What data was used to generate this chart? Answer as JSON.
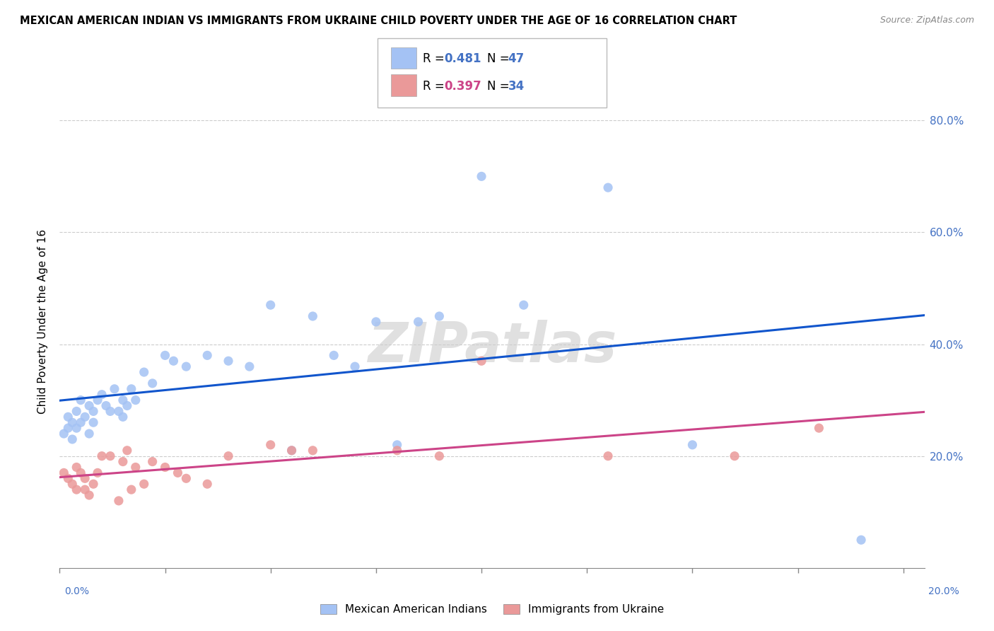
{
  "title": "MEXICAN AMERICAN INDIAN VS IMMIGRANTS FROM UKRAINE CHILD POVERTY UNDER THE AGE OF 16 CORRELATION CHART",
  "source": "Source: ZipAtlas.com",
  "ylabel": "Child Poverty Under the Age of 16",
  "legend1_R": "R = 0.481",
  "legend1_N": "N = 47",
  "legend2_R": "R = 0.397",
  "legend2_N": "N = 34",
  "blue_color": "#a4c2f4",
  "pink_color": "#ea9999",
  "blue_line_color": "#1155cc",
  "pink_line_color": "#cc4488",
  "watermark": "ZIPatlas",
  "blue_scatter_x": [
    0.001,
    0.002,
    0.002,
    0.003,
    0.003,
    0.004,
    0.004,
    0.005,
    0.005,
    0.006,
    0.007,
    0.007,
    0.008,
    0.008,
    0.009,
    0.01,
    0.011,
    0.012,
    0.013,
    0.014,
    0.015,
    0.015,
    0.016,
    0.017,
    0.018,
    0.02,
    0.022,
    0.025,
    0.027,
    0.03,
    0.035,
    0.04,
    0.045,
    0.05,
    0.055,
    0.06,
    0.065,
    0.07,
    0.075,
    0.08,
    0.085,
    0.09,
    0.1,
    0.11,
    0.13,
    0.15,
    0.19
  ],
  "blue_scatter_y": [
    0.24,
    0.25,
    0.27,
    0.23,
    0.26,
    0.28,
    0.25,
    0.26,
    0.3,
    0.27,
    0.29,
    0.24,
    0.28,
    0.26,
    0.3,
    0.31,
    0.29,
    0.28,
    0.32,
    0.28,
    0.3,
    0.27,
    0.29,
    0.32,
    0.3,
    0.35,
    0.33,
    0.38,
    0.37,
    0.36,
    0.38,
    0.37,
    0.36,
    0.47,
    0.21,
    0.45,
    0.38,
    0.36,
    0.44,
    0.22,
    0.44,
    0.45,
    0.7,
    0.47,
    0.68,
    0.22,
    0.05
  ],
  "pink_scatter_x": [
    0.001,
    0.002,
    0.003,
    0.004,
    0.004,
    0.005,
    0.006,
    0.006,
    0.007,
    0.008,
    0.009,
    0.01,
    0.012,
    0.014,
    0.015,
    0.016,
    0.017,
    0.018,
    0.02,
    0.022,
    0.025,
    0.028,
    0.03,
    0.035,
    0.04,
    0.05,
    0.055,
    0.06,
    0.08,
    0.09,
    0.1,
    0.13,
    0.16,
    0.18
  ],
  "pink_scatter_y": [
    0.17,
    0.16,
    0.15,
    0.18,
    0.14,
    0.17,
    0.16,
    0.14,
    0.13,
    0.15,
    0.17,
    0.2,
    0.2,
    0.12,
    0.19,
    0.21,
    0.14,
    0.18,
    0.15,
    0.19,
    0.18,
    0.17,
    0.16,
    0.15,
    0.2,
    0.22,
    0.21,
    0.21,
    0.21,
    0.2,
    0.37,
    0.2,
    0.2,
    0.25
  ],
  "xlim": [
    0.0,
    0.205
  ],
  "ylim": [
    0.0,
    0.88
  ],
  "y_ticks": [
    0.2,
    0.4,
    0.6,
    0.8
  ],
  "x_ticks": [
    0.0,
    0.025,
    0.05,
    0.075,
    0.1,
    0.125,
    0.15,
    0.175,
    0.2
  ]
}
